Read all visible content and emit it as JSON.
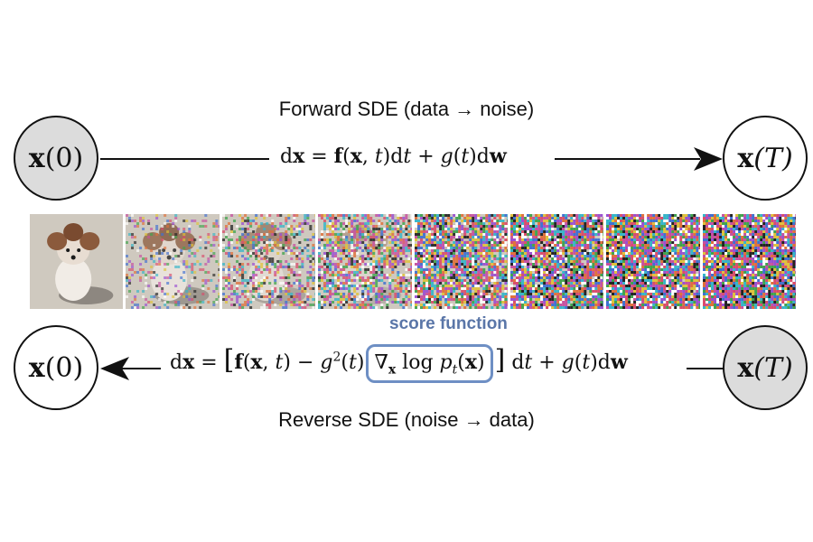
{
  "forward": {
    "label": "Forward SDE (data → noise)",
    "start_node": {
      "main": "x",
      "arg": "(0)"
    },
    "end_node": {
      "main": "x",
      "arg": "(T)"
    }
  },
  "reverse": {
    "label": "Reverse SDE (noise → data)",
    "start_node": {
      "main": "x",
      "arg": "(T)"
    },
    "end_node": {
      "main": "x",
      "arg": "(0)"
    },
    "score_label": "score function"
  },
  "noise_strip": {
    "tile_count": 8,
    "noise_levels": [
      0.0,
      0.25,
      0.45,
      0.62,
      0.85,
      0.95,
      0.99,
      1.0
    ]
  }
}
